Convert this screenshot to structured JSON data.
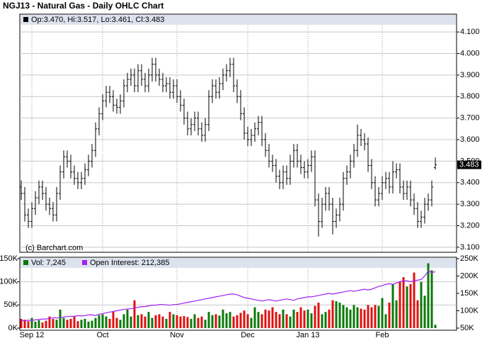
{
  "chart_data": {
    "type": "ohlc",
    "title": "NGJ13 - Natural Gas - Daily OHLC Chart",
    "info_text": "Op:3.470, Hi:3.517, Lo:3.461, Cl:3.483",
    "watermark": "(c) Barchart.com",
    "categories": [
      null,
      null,
      null,
      "Sep 12",
      null,
      null,
      null,
      null,
      null,
      null,
      null,
      null,
      null,
      null,
      null,
      null,
      null,
      null,
      null,
      null,
      null,
      null,
      null,
      "Oct",
      null,
      null,
      null,
      null,
      null,
      null,
      null,
      null,
      null,
      null,
      null,
      null,
      null,
      null,
      null,
      null,
      null,
      null,
      null,
      null,
      "Nov",
      null,
      null,
      null,
      null,
      null,
      null,
      null,
      null,
      null,
      null,
      null,
      null,
      null,
      null,
      null,
      null,
      null,
      null,
      null,
      "Dec",
      null,
      null,
      null,
      null,
      null,
      null,
      null,
      null,
      null,
      null,
      null,
      null,
      null,
      null,
      null,
      null,
      "Jan 13",
      null,
      null,
      null,
      null,
      null,
      null,
      null,
      null,
      null,
      null,
      null,
      null,
      null,
      null,
      null,
      null,
      null,
      null,
      null,
      null,
      "Feb",
      null,
      null,
      null,
      null,
      null,
      null,
      null,
      null,
      null,
      null,
      null,
      null,
      null,
      null,
      null
    ],
    "open": [
      3.38,
      3.35,
      3.25,
      3.22,
      3.28,
      3.33,
      3.38,
      3.35,
      3.3,
      3.28,
      3.25,
      3.35,
      3.45,
      3.52,
      3.5,
      3.45,
      3.42,
      3.4,
      3.42,
      3.46,
      3.5,
      3.55,
      3.65,
      3.72,
      3.78,
      3.82,
      3.8,
      3.76,
      3.75,
      3.78,
      3.85,
      3.88,
      3.9,
      3.85,
      3.92,
      3.88,
      3.85,
      3.9,
      3.95,
      3.9,
      3.88,
      3.85,
      3.86,
      3.82,
      3.85,
      3.8,
      3.76,
      3.7,
      3.65,
      3.67,
      3.7,
      3.65,
      3.62,
      3.67,
      3.8,
      3.85,
      3.82,
      3.86,
      3.9,
      3.92,
      3.95,
      3.85,
      3.8,
      3.72,
      3.63,
      3.6,
      3.62,
      3.65,
      3.68,
      3.6,
      3.55,
      3.5,
      3.48,
      3.43,
      3.4,
      3.45,
      3.42,
      3.5,
      3.55,
      3.5,
      3.47,
      3.45,
      3.48,
      3.52,
      3.32,
      3.22,
      3.3,
      3.35,
      3.3,
      3.22,
      3.25,
      3.3,
      3.42,
      3.45,
      3.5,
      3.55,
      3.62,
      3.6,
      3.58,
      3.48,
      3.4,
      3.32,
      3.35,
      3.4,
      3.42,
      3.38,
      3.45,
      3.46,
      3.38,
      3.35,
      3.38,
      3.32,
      3.28,
      3.22,
      3.24,
      3.3,
      3.32,
      3.47
    ],
    "high": [
      3.41,
      3.38,
      3.28,
      3.31,
      3.36,
      3.41,
      3.41,
      3.38,
      3.33,
      3.31,
      3.38,
      3.48,
      3.55,
      3.55,
      3.53,
      3.48,
      3.45,
      3.45,
      3.49,
      3.53,
      3.58,
      3.68,
      3.75,
      3.81,
      3.85,
      3.85,
      3.83,
      3.79,
      3.81,
      3.88,
      3.91,
      3.93,
      3.93,
      3.95,
      3.95,
      3.91,
      3.93,
      3.98,
      3.98,
      3.93,
      3.91,
      3.89,
      3.89,
      3.88,
      3.88,
      3.83,
      3.79,
      3.73,
      3.7,
      3.73,
      3.73,
      3.68,
      3.7,
      3.83,
      3.88,
      3.88,
      3.89,
      3.93,
      3.95,
      3.98,
      3.98,
      3.88,
      3.83,
      3.75,
      3.66,
      3.65,
      3.68,
      3.71,
      3.71,
      3.63,
      3.58,
      3.53,
      3.51,
      3.46,
      3.48,
      3.48,
      3.53,
      3.58,
      3.58,
      3.53,
      3.5,
      3.51,
      3.55,
      3.55,
      3.35,
      3.33,
      3.38,
      3.38,
      3.33,
      3.28,
      3.33,
      3.45,
      3.48,
      3.53,
      3.58,
      3.67,
      3.65,
      3.63,
      3.61,
      3.51,
      3.43,
      3.38,
      3.43,
      3.45,
      3.45,
      3.5,
      3.49,
      3.49,
      3.41,
      3.41,
      3.41,
      3.35,
      3.31,
      3.27,
      3.33,
      3.35,
      3.41,
      3.517
    ],
    "low": [
      3.32,
      3.22,
      3.19,
      3.19,
      3.25,
      3.3,
      3.32,
      3.27,
      3.25,
      3.22,
      3.22,
      3.32,
      3.42,
      3.47,
      3.42,
      3.39,
      3.37,
      3.37,
      3.39,
      3.43,
      3.47,
      3.52,
      3.62,
      3.69,
      3.75,
      3.77,
      3.73,
      3.72,
      3.72,
      3.75,
      3.82,
      3.85,
      3.82,
      3.82,
      3.85,
      3.82,
      3.82,
      3.87,
      3.87,
      3.85,
      3.82,
      3.82,
      3.79,
      3.79,
      3.77,
      3.73,
      3.67,
      3.62,
      3.62,
      3.64,
      3.62,
      3.59,
      3.59,
      3.64,
      3.77,
      3.79,
      3.79,
      3.83,
      3.87,
      3.89,
      3.82,
      3.77,
      3.69,
      3.6,
      3.57,
      3.57,
      3.59,
      3.62,
      3.57,
      3.52,
      3.47,
      3.45,
      3.4,
      3.37,
      3.37,
      3.39,
      3.39,
      3.47,
      3.47,
      3.44,
      3.42,
      3.42,
      3.45,
      3.29,
      3.15,
      3.19,
      3.27,
      3.27,
      3.16,
      3.19,
      3.22,
      3.27,
      3.39,
      3.42,
      3.47,
      3.52,
      3.57,
      3.55,
      3.45,
      3.37,
      3.29,
      3.29,
      3.32,
      3.37,
      3.35,
      3.35,
      3.42,
      3.35,
      3.32,
      3.32,
      3.29,
      3.25,
      3.19,
      3.19,
      3.21,
      3.27,
      3.29,
      3.461
    ],
    "close": [
      3.35,
      3.25,
      3.22,
      3.28,
      3.33,
      3.38,
      3.35,
      3.3,
      3.28,
      3.25,
      3.35,
      3.45,
      3.52,
      3.5,
      3.45,
      3.42,
      3.4,
      3.42,
      3.46,
      3.5,
      3.55,
      3.65,
      3.72,
      3.78,
      3.82,
      3.8,
      3.76,
      3.75,
      3.78,
      3.85,
      3.88,
      3.9,
      3.85,
      3.92,
      3.88,
      3.85,
      3.9,
      3.95,
      3.9,
      3.88,
      3.85,
      3.86,
      3.82,
      3.85,
      3.8,
      3.76,
      3.7,
      3.65,
      3.67,
      3.7,
      3.65,
      3.62,
      3.67,
      3.8,
      3.85,
      3.82,
      3.86,
      3.9,
      3.92,
      3.95,
      3.85,
      3.8,
      3.72,
      3.63,
      3.6,
      3.62,
      3.65,
      3.68,
      3.6,
      3.55,
      3.5,
      3.48,
      3.43,
      3.4,
      3.45,
      3.42,
      3.5,
      3.55,
      3.5,
      3.47,
      3.45,
      3.48,
      3.52,
      3.32,
      3.22,
      3.3,
      3.35,
      3.3,
      3.22,
      3.25,
      3.3,
      3.42,
      3.45,
      3.5,
      3.55,
      3.62,
      3.6,
      3.58,
      3.48,
      3.4,
      3.32,
      3.35,
      3.4,
      3.42,
      3.38,
      3.45,
      3.46,
      3.38,
      3.35,
      3.38,
      3.32,
      3.28,
      3.22,
      3.24,
      3.3,
      3.32,
      3.38,
      3.483
    ],
    "last_label": "3.483",
    "color": "#000000",
    "grid": true,
    "ylim": [
      3.08,
      4.13
    ],
    "yticks": [
      {
        "value": 3.1,
        "label": "3.100"
      },
      {
        "value": 3.2,
        "label": "3.200"
      },
      {
        "value": 3.3,
        "label": "3.300"
      },
      {
        "value": 3.4,
        "label": "3.400"
      },
      {
        "value": 3.5,
        "label": "3.500"
      },
      {
        "value": 3.6,
        "label": "3.600"
      },
      {
        "value": 3.7,
        "label": "3.700"
      },
      {
        "value": 3.8,
        "label": "3.800"
      },
      {
        "value": 3.9,
        "label": "3.900"
      },
      {
        "value": 4.0,
        "label": "4.000"
      },
      {
        "value": 4.1,
        "label": "4.100"
      }
    ],
    "volume": {
      "type": "bar",
      "up_color": "#0b7a0b",
      "down_color": "#e01010",
      "ylim": [
        0,
        150000
      ],
      "yticks": [
        {
          "value": 0,
          "label": "0K"
        },
        {
          "value": 50000,
          "label": "50K"
        },
        {
          "value": 100000,
          "label": "100K"
        },
        {
          "value": 150000,
          "label": "150K"
        }
      ],
      "y2lim": [
        50000,
        250000
      ],
      "y2ticks": [
        {
          "value": 50000,
          "label": "50K"
        },
        {
          "value": 100000,
          "label": "100K"
        },
        {
          "value": 150000,
          "label": "150K"
        },
        {
          "value": 200000,
          "label": "200K"
        },
        {
          "value": 250000,
          "label": "250K"
        }
      ],
      "series": [
        {
          "name": "Vol: 7,245",
          "color": "#0b7a0b",
          "values": [
            20000,
            18000,
            15000,
            22000,
            14000,
            17000,
            12000,
            16000,
            25000,
            20000,
            18000,
            40000,
            22000,
            18000,
            20000,
            25000,
            15000,
            18000,
            20000,
            14000,
            16000,
            22000,
            28000,
            30000,
            25000,
            20000,
            35000,
            22000,
            18000,
            30000,
            40000,
            25000,
            60000,
            28000,
            30000,
            25000,
            35000,
            22000,
            28000,
            30000,
            25000,
            20000,
            35000,
            30000,
            28000,
            25000,
            26000,
            24000,
            20000,
            30000,
            22000,
            25000,
            18000,
            35000,
            28000,
            30000,
            27000,
            40000,
            32000,
            35000,
            25000,
            28000,
            33000,
            38000,
            30000,
            22000,
            45000,
            35000,
            30000,
            40000,
            38000,
            45000,
            35000,
            30000,
            40000,
            30000,
            25000,
            40000,
            35000,
            45000,
            38000,
            40000,
            32000,
            48000,
            55000,
            30000,
            35000,
            40000,
            60000,
            58000,
            55000,
            50000,
            45000,
            40000,
            50000,
            45000,
            42000,
            40000,
            50000,
            45000,
            50000,
            48000,
            65000,
            30000,
            55000,
            95000,
            60000,
            100000,
            110000,
            90000,
            95000,
            120000,
            60000,
            100000,
            70000,
            140000,
            125000,
            7245
          ]
        },
        {
          "name": "Open Interest: 212,385",
          "color": "#a020f0",
          "axis": "y2",
          "values": [
            72000,
            71000,
            73000,
            72000,
            74000,
            75000,
            76000,
            76000,
            78000,
            80000,
            79000,
            80000,
            82000,
            83000,
            84000,
            84000,
            86000,
            85000,
            86000,
            88000,
            88000,
            86000,
            90000,
            92000,
            94000,
            96000,
            98000,
            100000,
            102000,
            104000,
            105000,
            106000,
            108000,
            110000,
            112000,
            112000,
            114000,
            116000,
            116000,
            118000,
            118000,
            117000,
            116000,
            118000,
            118000,
            120000,
            122000,
            124000,
            126000,
            128000,
            130000,
            132000,
            134000,
            136000,
            138000,
            140000,
            142000,
            144000,
            146000,
            148000,
            148000,
            146000,
            142000,
            138000,
            136000,
            134000,
            132000,
            130000,
            128000,
            130000,
            132000,
            130000,
            128000,
            130000,
            132000,
            134000,
            132000,
            130000,
            134000,
            136000,
            138000,
            140000,
            140000,
            142000,
            144000,
            146000,
            148000,
            150000,
            148000,
            150000,
            152000,
            154000,
            156000,
            158000,
            156000,
            158000,
            160000,
            162000,
            160000,
            162000,
            166000,
            170000,
            172000,
            176000,
            178000,
            176000,
            180000,
            184000,
            186000,
            186000,
            184000,
            186000,
            188000,
            190000,
            200000,
            214000,
            210000,
            212385
          ]
        }
      ]
    }
  }
}
